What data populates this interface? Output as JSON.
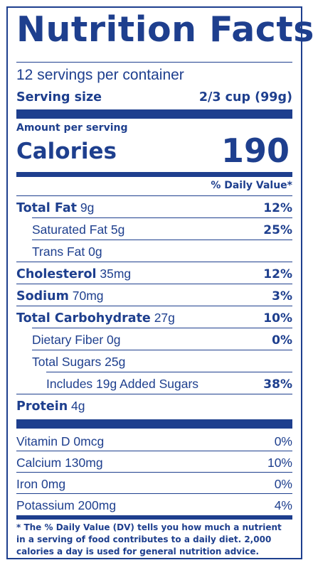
{
  "title": "Nutrition Facts",
  "servings_per_container": "12 servings per container",
  "serving_size": {
    "label": "Serving size",
    "value": "2/3 cup (99g)"
  },
  "amount_per_serving": "Amount per serving",
  "calories": {
    "label": "Calories",
    "value": "190"
  },
  "daily_value_header": "% Daily Value*",
  "nutrients": [
    {
      "name": "Total Fat",
      "amount": "9g",
      "dv": "12%",
      "bold": true,
      "indent": 0
    },
    {
      "name": "Saturated Fat",
      "amount": "5g",
      "dv": "25%",
      "bold": false,
      "indent": 1
    },
    {
      "name": "Trans Fat",
      "amount": "0g",
      "dv": "",
      "bold": false,
      "indent": 1
    },
    {
      "name": "Cholesterol",
      "amount": "35mg",
      "dv": "12%",
      "bold": true,
      "indent": 0
    },
    {
      "name": "Sodium",
      "amount": "70mg",
      "dv": "3%",
      "bold": true,
      "indent": 0
    },
    {
      "name": "Total Carbohydrate",
      "amount": "27g",
      "dv": "10%",
      "bold": true,
      "indent": 0
    },
    {
      "name": "Dietary Fiber",
      "amount": "0g",
      "dv": "0%",
      "bold": false,
      "indent": 1
    },
    {
      "name": "Total Sugars",
      "amount": "25g",
      "dv": "",
      "bold": false,
      "indent": 1
    },
    {
      "name": "Includes 19g Added Sugars",
      "amount": "",
      "dv": "38%",
      "bold": false,
      "indent": 2
    },
    {
      "name": "Protein",
      "amount": "4g",
      "dv": "",
      "bold": true,
      "indent": 0
    }
  ],
  "vitamins": [
    {
      "label": "Vitamin D 0mcg",
      "dv": "0%"
    },
    {
      "label": "Calcium 130mg",
      "dv": "10%"
    },
    {
      "label": "Iron 0mg",
      "dv": "0%"
    },
    {
      "label": "Potassium 200mg",
      "dv": "4%"
    }
  ],
  "footnote": "* The % Daily Value (DV) tells you how much a nutrient in a serving of food contributes to a daily diet. 2,000 calories a day is used for general nutrition advice.",
  "colors": {
    "ink": "#1e3f8e",
    "background": "#ffffff"
  }
}
